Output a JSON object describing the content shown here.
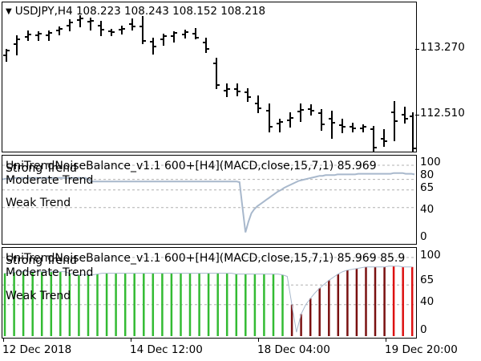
{
  "main": {
    "title": "USDJPY,H4  108.223 108.243 108.152 108.218",
    "menu_icon": "triangle-down-icon",
    "price_labels": [
      "113.270",
      "112.510"
    ],
    "bar_color": "#000000"
  },
  "indicator1": {
    "title": "UniTrendNoiseBalance_v1.1 600+[H4](MACD,close,15,7,1) 85.969",
    "levels": {
      "strong": "Strong Trend",
      "moderate": "Moderate Trend",
      "weak": "Weak Trend"
    },
    "scale_labels": [
      "100",
      "80",
      "65",
      "40",
      "0"
    ],
    "line_color": "#a8b8cc",
    "values": [
      80,
      81,
      81,
      81,
      82,
      82,
      82,
      82,
      82,
      82,
      82,
      82,
      82,
      82,
      82,
      82,
      82,
      82,
      82,
      82,
      82,
      82,
      82,
      82,
      82,
      82,
      82,
      82,
      82,
      80,
      77,
      77,
      77,
      77,
      77,
      77,
      77,
      77,
      77,
      77,
      77,
      77,
      77,
      77,
      77,
      77,
      77,
      77,
      77,
      77,
      77,
      77,
      77,
      77,
      77,
      77,
      77,
      77,
      77,
      77,
      77,
      77,
      77,
      77,
      77,
      77,
      77,
      77,
      77,
      77,
      77,
      77,
      77,
      77,
      77,
      77,
      77,
      77,
      77,
      77,
      76,
      40,
      5,
      20,
      32,
      38,
      42,
      45,
      48,
      51,
      54,
      57,
      60,
      63,
      65,
      68,
      70,
      72,
      74,
      76,
      78,
      79,
      80,
      81,
      82,
      83,
      84,
      85,
      85,
      86,
      86,
      86,
      86,
      87,
      87,
      87,
      87,
      87,
      87,
      87,
      88,
      88,
      88,
      88,
      88,
      88,
      88,
      88,
      88,
      88,
      88,
      88,
      89,
      89,
      89,
      89,
      88,
      88,
      88,
      87
    ]
  },
  "indicator2": {
    "title": "UniTrendNoiseBalance_v1.1 600+[H4](MACD,close,15,7,1) 85.969 85.9",
    "levels": {
      "strong": "Strong Trend",
      "moderate": "Moderate Trend",
      "weak": "Weak Trend"
    },
    "scale_labels": [
      "100",
      "65",
      "40",
      "0"
    ],
    "histogram": [
      {
        "v": 80,
        "c": "#33bb33"
      },
      {
        "v": 80,
        "c": "#33bb33"
      },
      {
        "v": 81,
        "c": "#33bb33"
      },
      {
        "v": 82,
        "c": "#33bb33"
      },
      {
        "v": 82,
        "c": "#33bb33"
      },
      {
        "v": 82,
        "c": "#33bb33"
      },
      {
        "v": 82,
        "c": "#33bb33"
      },
      {
        "v": 82,
        "c": "#33bb33"
      },
      {
        "v": 82,
        "c": "#33bb33"
      },
      {
        "v": 82,
        "c": "#33bb33"
      },
      {
        "v": 82,
        "c": "#33bb33"
      },
      {
        "v": 82,
        "c": "#33bb33"
      },
      {
        "v": 82,
        "c": "#33bb33"
      },
      {
        "v": 82,
        "c": "#33bb33"
      },
      {
        "v": 80,
        "c": "#33bb33"
      },
      {
        "v": 79,
        "c": "#33bb33"
      },
      {
        "v": 78,
        "c": "#33bb33"
      },
      {
        "v": 78,
        "c": "#33bb33"
      },
      {
        "v": 78,
        "c": "#33bb33"
      },
      {
        "v": 78,
        "c": "#33bb33"
      },
      {
        "v": 79,
        "c": "#33bb33"
      },
      {
        "v": 80,
        "c": "#33bb33"
      },
      {
        "v": 80,
        "c": "#33bb33"
      },
      {
        "v": 80,
        "c": "#33bb33"
      },
      {
        "v": 80,
        "c": "#33bb33"
      },
      {
        "v": 80,
        "c": "#33bb33"
      },
      {
        "v": 80,
        "c": "#33bb33"
      },
      {
        "v": 80,
        "c": "#33bb33"
      },
      {
        "v": 80,
        "c": "#33bb33"
      },
      {
        "v": 80,
        "c": "#33bb33"
      },
      {
        "v": 80,
        "c": "#33bb33"
      },
      {
        "v": 80,
        "c": "#33bb33"
      },
      {
        "v": 80,
        "c": "#33bb33"
      },
      {
        "v": 80,
        "c": "#33bb33"
      },
      {
        "v": 80,
        "c": "#33bb33"
      },
      {
        "v": 80,
        "c": "#33bb33"
      },
      {
        "v": 80,
        "c": "#33bb33"
      },
      {
        "v": 80,
        "c": "#33bb33"
      },
      {
        "v": 80,
        "c": "#33bb33"
      },
      {
        "v": 80,
        "c": "#33bb33"
      },
      {
        "v": 80,
        "c": "#33bb33"
      },
      {
        "v": 80,
        "c": "#33bb33"
      },
      {
        "v": 80,
        "c": "#33bb33"
      },
      {
        "v": 80,
        "c": "#33bb33"
      },
      {
        "v": 80,
        "c": "#33bb33"
      },
      {
        "v": 80,
        "c": "#33bb33"
      },
      {
        "v": 80,
        "c": "#33bb33"
      },
      {
        "v": 80,
        "c": "#33bb33"
      },
      {
        "v": 80,
        "c": "#33bb33"
      },
      {
        "v": 80,
        "c": "#33bb33"
      },
      {
        "v": 79,
        "c": "#33bb33"
      },
      {
        "v": 79,
        "c": "#33bb33"
      },
      {
        "v": 79,
        "c": "#33bb33"
      },
      {
        "v": 79,
        "c": "#33bb33"
      },
      {
        "v": 79,
        "c": "#33bb33"
      },
      {
        "v": 79,
        "c": "#33bb33"
      },
      {
        "v": 79,
        "c": "#33bb33"
      },
      {
        "v": 79,
        "c": "#33bb33"
      },
      {
        "v": 79,
        "c": "#33bb33"
      },
      {
        "v": 79,
        "c": "#33bb33"
      },
      {
        "v": 78,
        "c": "#33bb33"
      },
      {
        "v": 76,
        "c": "#33bb33"
      },
      {
        "v": 40,
        "c": "#7a1010"
      },
      {
        "v": 5,
        "c": "#7a1010"
      },
      {
        "v": 28,
        "c": "#7a1010"
      },
      {
        "v": 40,
        "c": "#7a1010"
      },
      {
        "v": 48,
        "c": "#7a1010"
      },
      {
        "v": 55,
        "c": "#7a1010"
      },
      {
        "v": 61,
        "c": "#7a1010"
      },
      {
        "v": 66,
        "c": "#7a1010"
      },
      {
        "v": 71,
        "c": "#7a1010"
      },
      {
        "v": 75,
        "c": "#7a1010"
      },
      {
        "v": 79,
        "c": "#7a1010"
      },
      {
        "v": 82,
        "c": "#7a1010"
      },
      {
        "v": 84,
        "c": "#7a1010"
      },
      {
        "v": 85,
        "c": "#7a1010"
      },
      {
        "v": 86,
        "c": "#7a1010"
      },
      {
        "v": 87,
        "c": "#7a1010"
      },
      {
        "v": 88,
        "c": "#7a1010"
      },
      {
        "v": 88,
        "c": "#7a1010"
      },
      {
        "v": 88,
        "c": "#7a1010"
      },
      {
        "v": 88,
        "c": "#7a1010"
      },
      {
        "v": 88,
        "c": "#7a1010"
      },
      {
        "v": 89,
        "c": "#7a1010"
      },
      {
        "v": 89,
        "c": "#dd1111"
      },
      {
        "v": 89,
        "c": "#7a1010"
      },
      {
        "v": 88,
        "c": "#dd1111"
      },
      {
        "v": 88,
        "c": "#dd1111"
      },
      {
        "v": 88,
        "c": "#dd1111"
      }
    ]
  },
  "x_axis": {
    "labels": [
      "12 Dec 2018",
      "14 Dec 12:00",
      "18 Dec 04:00",
      "19 Dec 20:00"
    ]
  }
}
